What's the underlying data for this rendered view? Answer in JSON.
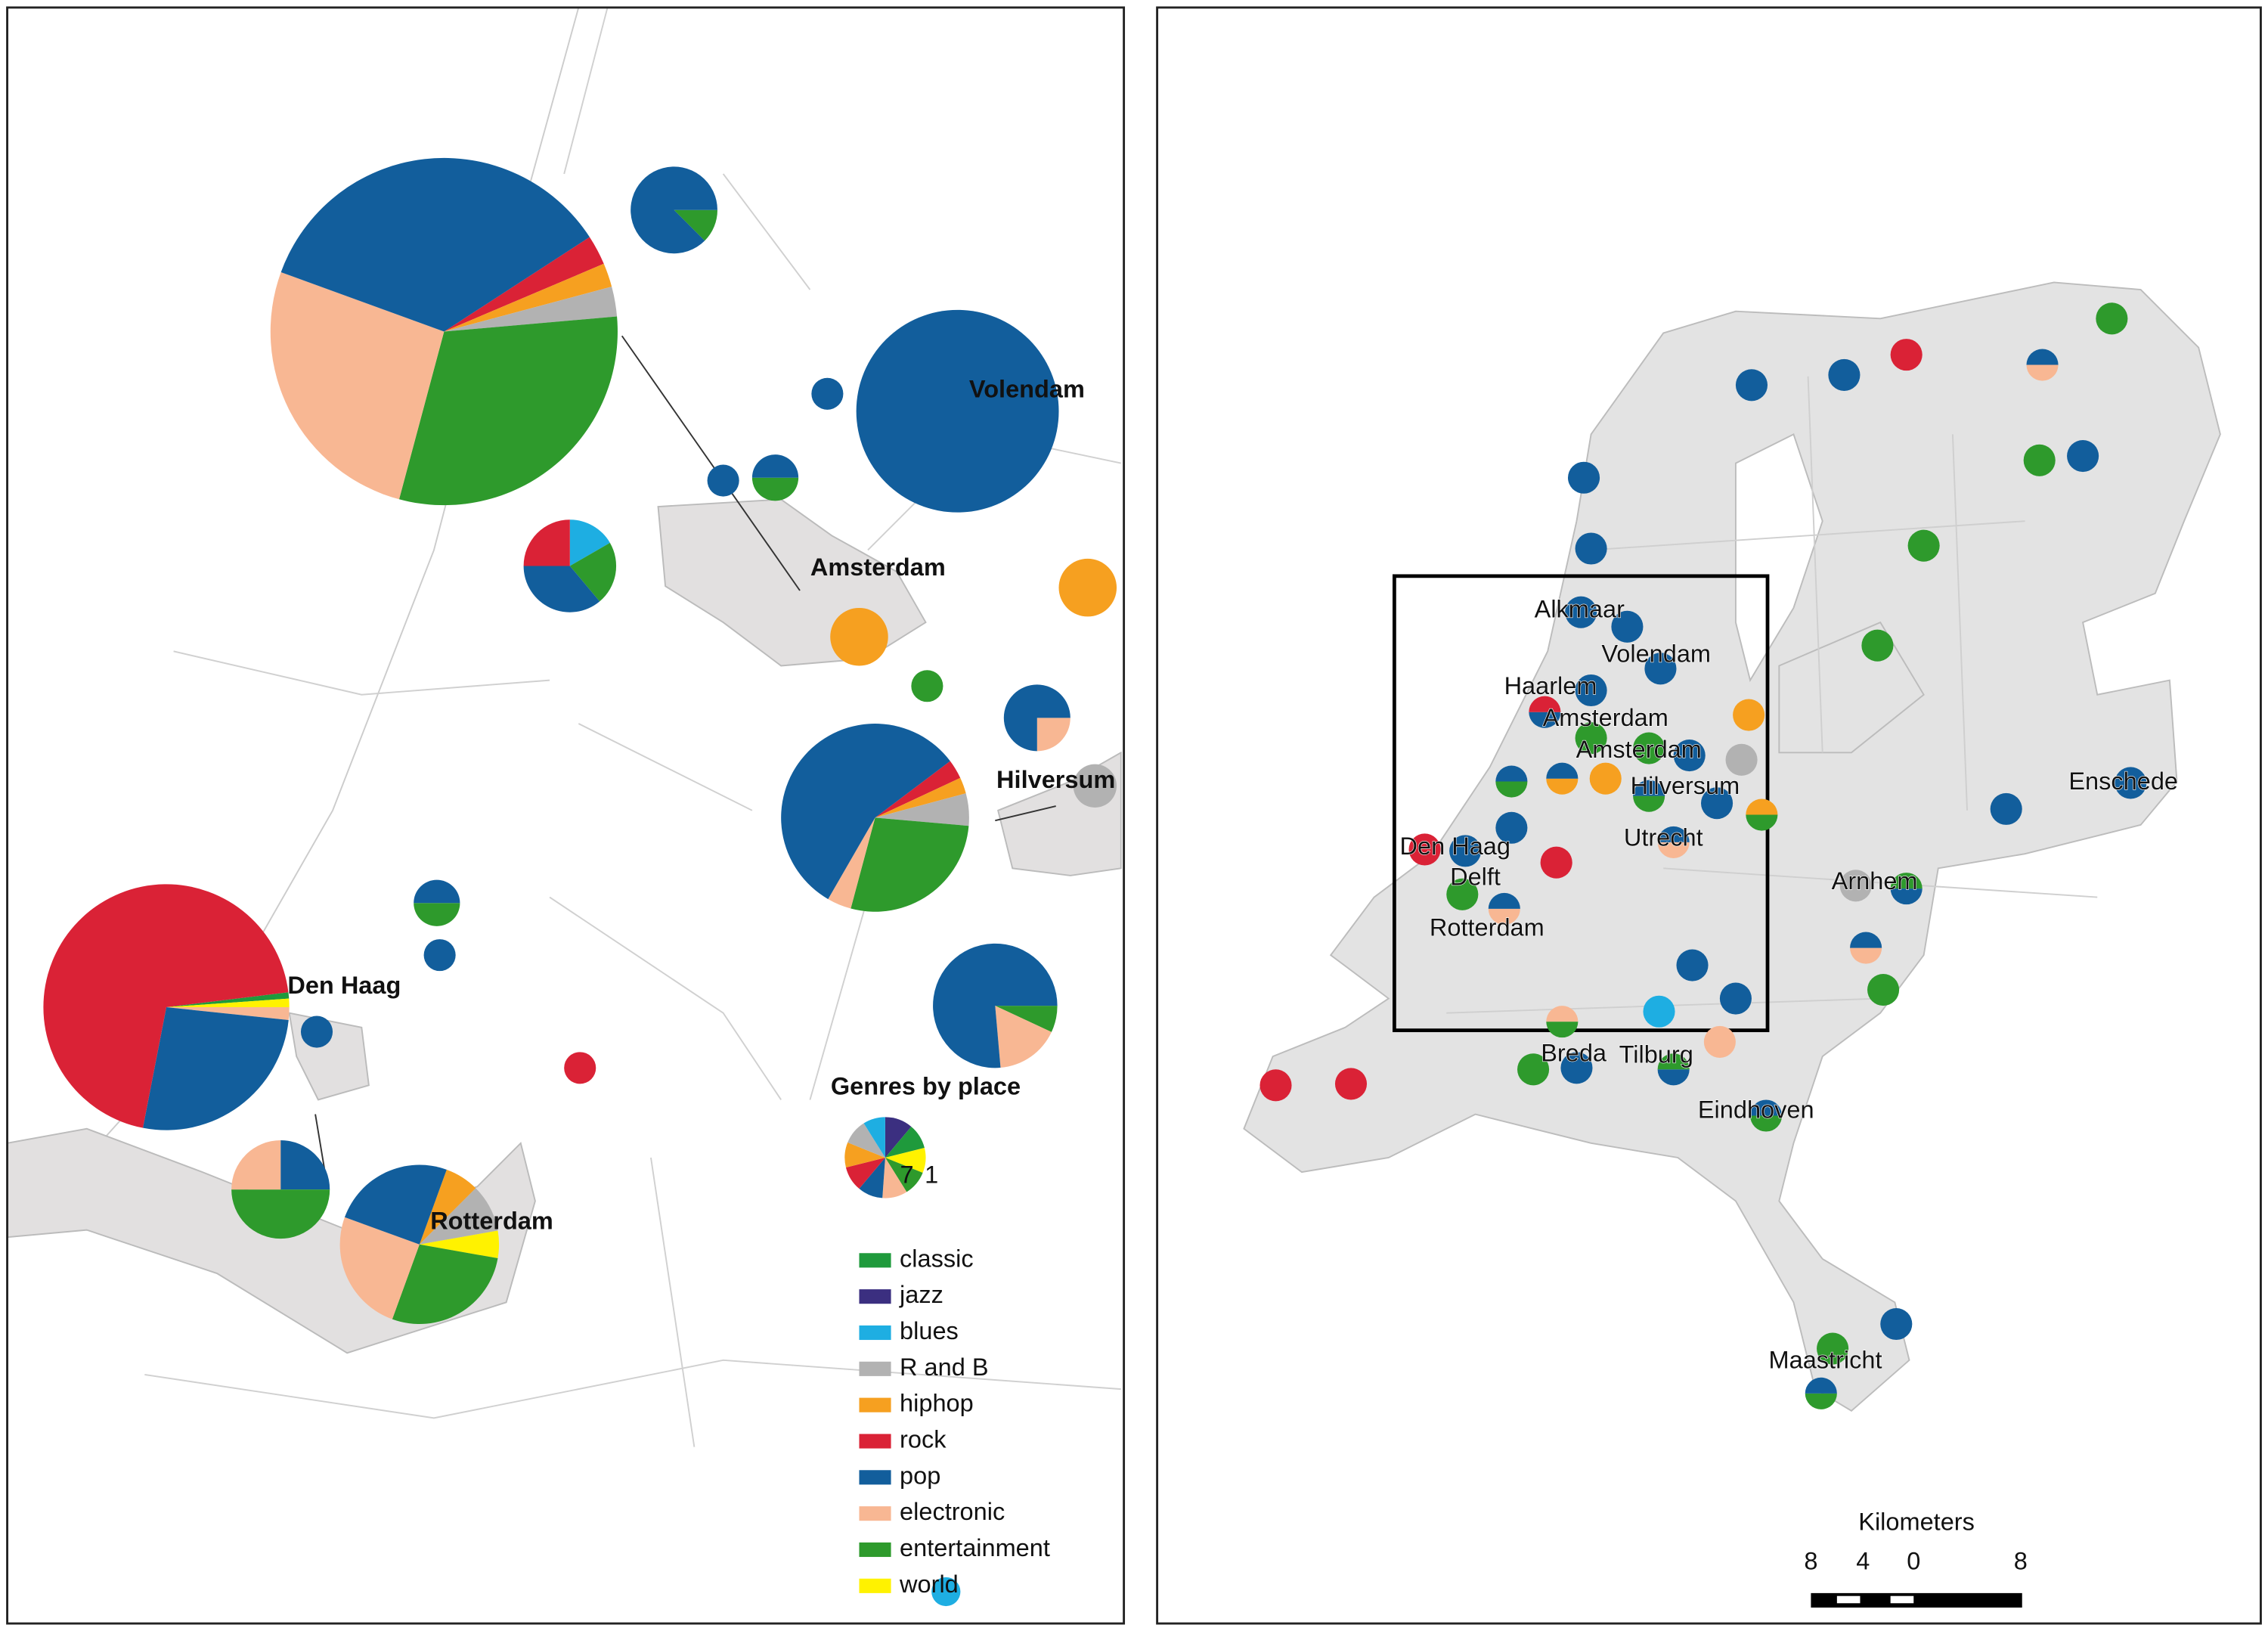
{
  "left_map": {
    "place_labels": [
      "Volendam",
      "Amsterdam",
      "Hilversum",
      "Den Haag",
      "Rotterdam"
    ],
    "legend": {
      "title": "Genres by place",
      "pie_labels": [
        "7",
        "1"
      ],
      "items": [
        {
          "label": "classic",
          "color": "#1f9a3c"
        },
        {
          "label": "jazz",
          "color": "#3b2f80"
        },
        {
          "label": "blues",
          "color": "#1eaee2"
        },
        {
          "label": "R and B",
          "color": "#b2b2b2"
        },
        {
          "label": "hiphop",
          "color": "#f6a020"
        },
        {
          "label": "rock",
          "color": "#da2236"
        },
        {
          "label": "pop",
          "color": "#125e9c"
        },
        {
          "label": "electronic",
          "color": "#f8b793"
        },
        {
          "label": "entertainment",
          "color": "#2e9a2c"
        },
        {
          "label": "world",
          "color": "#fff200"
        }
      ]
    }
  },
  "right_map": {
    "place_labels": [
      "Alkmaar",
      "Volendam",
      "Haarlem",
      "Amsterdam",
      "Amsterdam",
      "Hilversum",
      "Enschede",
      "Utrecht",
      "Den Haag",
      "Delft",
      "Arnhem",
      "Rotterdam",
      "Breda",
      "Tilburg",
      "Eindhoven",
      "Maastricht"
    ],
    "scale": {
      "title": "Kilometers",
      "labels": [
        "8",
        "4",
        "0",
        "8"
      ]
    }
  }
}
